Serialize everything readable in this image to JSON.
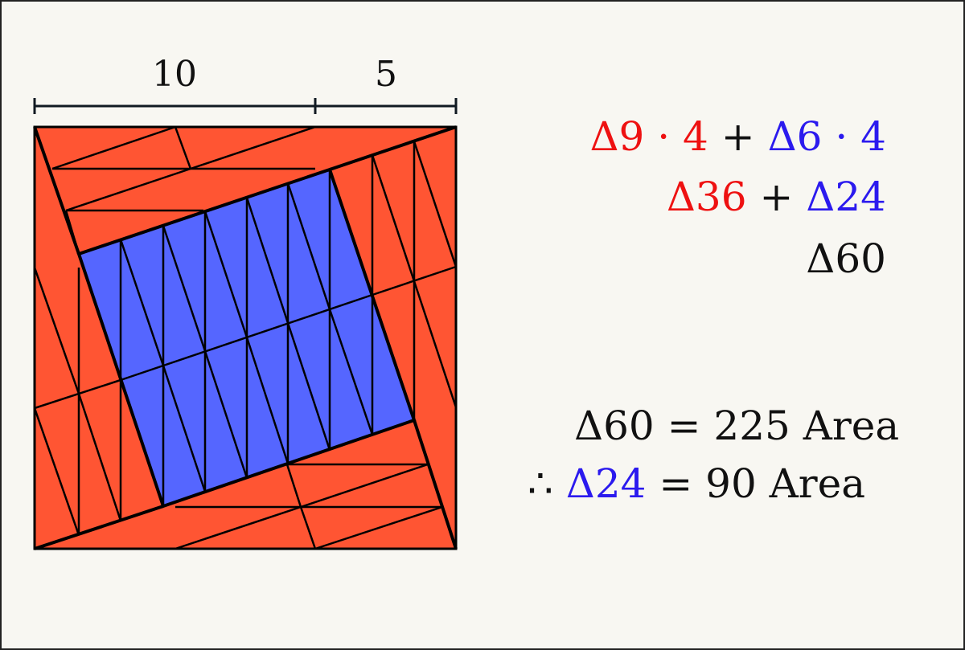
{
  "dimensions": {
    "label_a": "10",
    "label_b": "5"
  },
  "colors": {
    "red": "#ff5533",
    "blue": "#5566ff",
    "edge": "#000000"
  },
  "equations": {
    "line1": {
      "red_term": "Δ9 · 4",
      "plus": "+",
      "blue_term": "Δ6 · 4"
    },
    "line2": {
      "red_term": "Δ36",
      "plus": "+",
      "blue_term": "Δ24"
    },
    "line3": {
      "total": "Δ60"
    },
    "line4": {
      "text": "Δ60 = 225 Area"
    },
    "line5": {
      "therefore": "∴",
      "blue_term": "Δ24",
      "rest": "= 90 Area"
    }
  }
}
